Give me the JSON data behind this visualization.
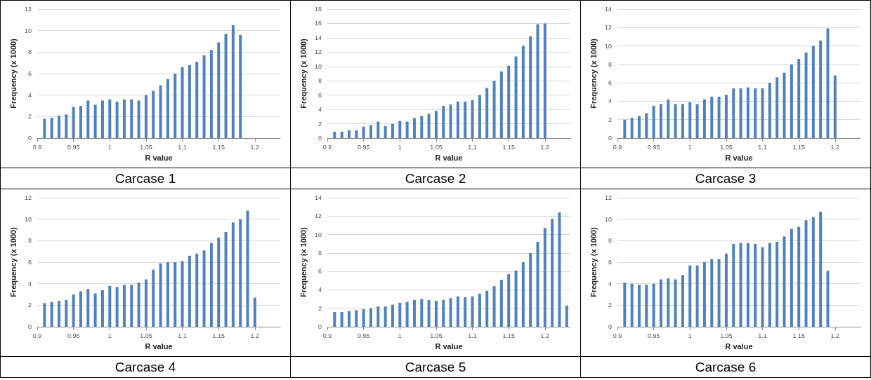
{
  "chart_data": [
    {
      "type": "bar",
      "title": "Carcase 1",
      "xlabel": "R value",
      "ylabel": "Frequency (x 1000)",
      "color": "#4f81bd",
      "grid": "y",
      "xlim": [
        0.9,
        1.235
      ],
      "xticks": [
        0.9,
        0.95,
        1,
        1.05,
        1.1,
        1.15,
        1.2
      ],
      "ylim": [
        0,
        12
      ],
      "yticks": [
        0,
        2,
        4,
        6,
        8,
        10,
        12
      ],
      "x": [
        0.91,
        0.92,
        0.93,
        0.94,
        0.95,
        0.96,
        0.97,
        0.98,
        0.99,
        1.0,
        1.01,
        1.02,
        1.03,
        1.04,
        1.05,
        1.06,
        1.07,
        1.08,
        1.09,
        1.1,
        1.11,
        1.12,
        1.13,
        1.14,
        1.15,
        1.16,
        1.17,
        1.18
      ],
      "values": [
        1.8,
        1.9,
        2.1,
        2.2,
        2.9,
        3.0,
        3.5,
        3.1,
        3.5,
        3.6,
        3.4,
        3.6,
        3.6,
        3.5,
        4.0,
        4.4,
        4.9,
        5.5,
        6.0,
        6.6,
        6.8,
        7.1,
        7.7,
        8.2,
        8.9,
        9.7,
        10.5,
        9.6
      ]
    },
    {
      "type": "bar",
      "title": "Carcase 2",
      "xlabel": "R value",
      "ylabel": "Frequency (x 1000)",
      "color": "#4f81bd",
      "grid": "y",
      "xlim": [
        0.9,
        1.235
      ],
      "xticks": [
        0.9,
        0.95,
        1,
        1.05,
        1.1,
        1.15,
        1.2
      ],
      "ylim": [
        0,
        18
      ],
      "yticks": [
        0,
        2,
        4,
        6,
        8,
        10,
        12,
        14,
        16,
        18
      ],
      "x": [
        0.91,
        0.92,
        0.93,
        0.94,
        0.95,
        0.96,
        0.97,
        0.98,
        0.99,
        1.0,
        1.01,
        1.02,
        1.03,
        1.04,
        1.05,
        1.06,
        1.07,
        1.08,
        1.09,
        1.1,
        1.11,
        1.12,
        1.13,
        1.14,
        1.15,
        1.16,
        1.17,
        1.18,
        1.19,
        1.2
      ],
      "values": [
        0.9,
        0.9,
        1.1,
        1.1,
        1.6,
        1.8,
        2.3,
        1.7,
        2.0,
        2.4,
        2.3,
        2.8,
        3.1,
        3.4,
        3.8,
        4.5,
        4.7,
        5.1,
        5.1,
        5.3,
        6.0,
        7.0,
        8.0,
        9.3,
        10.1,
        11.4,
        12.9,
        14.2,
        15.9,
        16.0
      ]
    },
    {
      "type": "bar",
      "title": "Carcase 3",
      "xlabel": "R value",
      "ylabel": "Frequency (x 1000)",
      "color": "#4f81bd",
      "grid": "y",
      "xlim": [
        0.9,
        1.235
      ],
      "xticks": [
        0.9,
        0.95,
        1,
        1.05,
        1.1,
        1.15,
        1.2
      ],
      "ylim": [
        0,
        14
      ],
      "yticks": [
        0,
        2,
        4,
        6,
        8,
        10,
        12,
        14
      ],
      "x": [
        0.91,
        0.92,
        0.93,
        0.94,
        0.95,
        0.96,
        0.97,
        0.98,
        0.99,
        1.0,
        1.01,
        1.02,
        1.03,
        1.04,
        1.05,
        1.06,
        1.07,
        1.08,
        1.09,
        1.1,
        1.11,
        1.12,
        1.13,
        1.14,
        1.15,
        1.16,
        1.17,
        1.18,
        1.19,
        1.2
      ],
      "values": [
        2.0,
        2.2,
        2.4,
        2.7,
        3.5,
        3.7,
        4.2,
        3.7,
        3.7,
        3.9,
        3.7,
        4.2,
        4.5,
        4.5,
        4.7,
        5.4,
        5.4,
        5.5,
        5.4,
        5.4,
        6.0,
        6.6,
        7.1,
        8.0,
        8.6,
        9.3,
        10.0,
        10.6,
        11.9,
        6.8
      ]
    },
    {
      "type": "bar",
      "title": "Carcase 4",
      "xlabel": "R value",
      "ylabel": "Frequency (x 1000)",
      "color": "#4f81bd",
      "grid": "y",
      "xlim": [
        0.9,
        1.235
      ],
      "xticks": [
        0.9,
        0.95,
        1,
        1.05,
        1.1,
        1.15,
        1.2
      ],
      "ylim": [
        0,
        12
      ],
      "yticks": [
        0,
        2,
        4,
        6,
        8,
        10,
        12
      ],
      "x": [
        0.91,
        0.92,
        0.93,
        0.94,
        0.95,
        0.96,
        0.97,
        0.98,
        0.99,
        1.0,
        1.01,
        1.02,
        1.03,
        1.04,
        1.05,
        1.06,
        1.07,
        1.08,
        1.09,
        1.1,
        1.11,
        1.12,
        1.13,
        1.14,
        1.15,
        1.16,
        1.17,
        1.18,
        1.19,
        1.2
      ],
      "values": [
        2.2,
        2.3,
        2.4,
        2.5,
        3.0,
        3.3,
        3.5,
        3.1,
        3.4,
        3.8,
        3.7,
        3.9,
        3.9,
        4.1,
        4.4,
        5.3,
        5.9,
        6.0,
        6.0,
        6.1,
        6.6,
        6.8,
        7.1,
        7.8,
        8.3,
        8.8,
        9.7,
        10.0,
        10.8,
        2.7
      ]
    },
    {
      "type": "bar",
      "title": "Carcase 5",
      "xlabel": "R value",
      "ylabel": "Frequency (x 1000)",
      "color": "#4f81bd",
      "grid": "y",
      "xlim": [
        0.9,
        1.235
      ],
      "xticks": [
        0.9,
        0.95,
        1,
        1.05,
        1.1,
        1.15,
        1.2
      ],
      "ylim": [
        0,
        14
      ],
      "yticks": [
        0,
        2,
        4,
        6,
        8,
        10,
        12,
        14
      ],
      "x": [
        0.91,
        0.92,
        0.93,
        0.94,
        0.95,
        0.96,
        0.97,
        0.98,
        0.99,
        1.0,
        1.01,
        1.02,
        1.03,
        1.04,
        1.05,
        1.06,
        1.07,
        1.08,
        1.09,
        1.1,
        1.11,
        1.12,
        1.13,
        1.14,
        1.15,
        1.16,
        1.17,
        1.18,
        1.19,
        1.2,
        1.21,
        1.22,
        1.23
      ],
      "values": [
        1.6,
        1.6,
        1.7,
        1.8,
        1.9,
        2.0,
        2.2,
        2.2,
        2.4,
        2.6,
        2.7,
        2.9,
        3.0,
        2.9,
        2.8,
        2.9,
        3.1,
        3.3,
        3.2,
        3.3,
        3.6,
        3.9,
        4.4,
        5.1,
        5.7,
        6.1,
        7.0,
        8.0,
        9.2,
        10.7,
        11.7,
        12.4,
        2.3
      ]
    },
    {
      "type": "bar",
      "title": "Carcase 6",
      "xlabel": "R value",
      "ylabel": "Frequency (x 1000)",
      "color": "#4f81bd",
      "grid": "y",
      "xlim": [
        0.9,
        1.235
      ],
      "xticks": [
        0.9,
        0.95,
        1,
        1.05,
        1.1,
        1.15,
        1.2
      ],
      "ylim": [
        0,
        12
      ],
      "yticks": [
        0,
        2,
        4,
        6,
        8,
        10,
        12
      ],
      "x": [
        0.91,
        0.92,
        0.93,
        0.94,
        0.95,
        0.96,
        0.97,
        0.98,
        0.99,
        1.0,
        1.01,
        1.02,
        1.03,
        1.04,
        1.05,
        1.06,
        1.07,
        1.08,
        1.09,
        1.1,
        1.11,
        1.12,
        1.13,
        1.14,
        1.15,
        1.16,
        1.17,
        1.18,
        1.19
      ],
      "values": [
        4.1,
        4.0,
        3.9,
        3.9,
        4.0,
        4.4,
        4.5,
        4.4,
        4.8,
        5.7,
        5.7,
        6.0,
        6.3,
        6.3,
        6.8,
        7.7,
        7.8,
        7.8,
        7.7,
        7.4,
        7.8,
        7.9,
        8.4,
        9.1,
        9.3,
        9.9,
        10.2,
        10.7,
        5.2
      ]
    }
  ]
}
